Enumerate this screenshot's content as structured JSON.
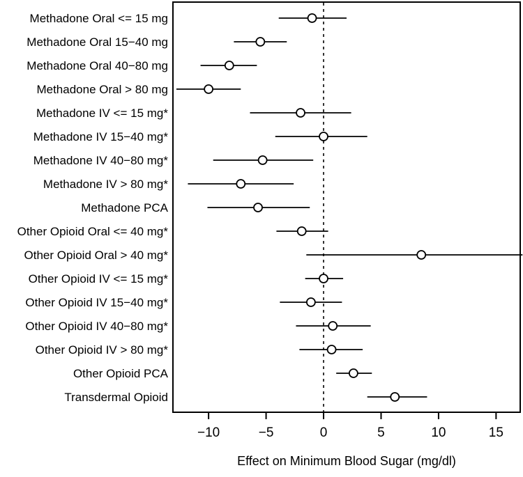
{
  "chart_data": {
    "type": "scatter",
    "subtype": "forest-plot",
    "title": "",
    "xlabel": "Effect on Minimum Blood Sugar (mg/dl)",
    "ylabel": "",
    "xlim": [
      -13.1,
      17.1
    ],
    "xticks": [
      -10,
      -5,
      0,
      5,
      10,
      15
    ],
    "xtick_labels": [
      "−10",
      "−5",
      "0",
      "5",
      "10",
      "15"
    ],
    "reference_line_x": 0,
    "reference_line_style": "dashed",
    "grid": false,
    "legend": false,
    "point_marker": "open-circle",
    "colors": {
      "foreground": "#000000",
      "background": "#ffffff",
      "reference_line": "#333333"
    },
    "rows": [
      {
        "label": "Methadone Oral <= 15 mg",
        "estimate": -1.0,
        "ci_low": -3.9,
        "ci_high": 2.0
      },
      {
        "label": "Methadone Oral 15−40 mg",
        "estimate": -5.5,
        "ci_low": -7.8,
        "ci_high": -3.2
      },
      {
        "label": "Methadone Oral 40−80 mg",
        "estimate": -8.2,
        "ci_low": -10.7,
        "ci_high": -5.8
      },
      {
        "label": "Methadone Oral > 80 mg",
        "estimate": -10.0,
        "ci_low": -12.8,
        "ci_high": -7.2
      },
      {
        "label": "Methadone IV <= 15 mg*",
        "estimate": -2.0,
        "ci_low": -6.4,
        "ci_high": 2.4
      },
      {
        "label": "Methadone IV 15−40 mg*",
        "estimate": 0.0,
        "ci_low": -4.2,
        "ci_high": 3.8
      },
      {
        "label": "Methadone IV 40−80 mg*",
        "estimate": -5.3,
        "ci_low": -9.6,
        "ci_high": -0.9
      },
      {
        "label": "Methadone IV > 80 mg*",
        "estimate": -7.2,
        "ci_low": -11.8,
        "ci_high": -2.6
      },
      {
        "label": "Methadone PCA",
        "estimate": -5.7,
        "ci_low": -10.1,
        "ci_high": -1.2
      },
      {
        "label": "Other Opioid Oral <= 40 mg*",
        "estimate": -1.9,
        "ci_low": -4.1,
        "ci_high": 0.4
      },
      {
        "label": "Other Opioid Oral > 40 mg*",
        "estimate": 8.5,
        "ci_low": -1.5,
        "ci_high": 17.3,
        "ci_high_clipped": true
      },
      {
        "label": "Other Opioid IV <= 15 mg*",
        "estimate": 0.0,
        "ci_low": -1.6,
        "ci_high": 1.7
      },
      {
        "label": "Other Opioid IV 15−40 mg*",
        "estimate": -1.1,
        "ci_low": -3.8,
        "ci_high": 1.6
      },
      {
        "label": "Other Opioid IV 40−80 mg*",
        "estimate": 0.8,
        "ci_low": -2.4,
        "ci_high": 4.1
      },
      {
        "label": "Other Opioid IV > 80 mg*",
        "estimate": 0.7,
        "ci_low": -2.1,
        "ci_high": 3.4
      },
      {
        "label": "Other Opioid PCA",
        "estimate": 2.6,
        "ci_low": 1.1,
        "ci_high": 4.2
      },
      {
        "label": "Transdermal Opioid",
        "estimate": 6.2,
        "ci_low": 3.8,
        "ci_high": 9.0
      }
    ]
  }
}
